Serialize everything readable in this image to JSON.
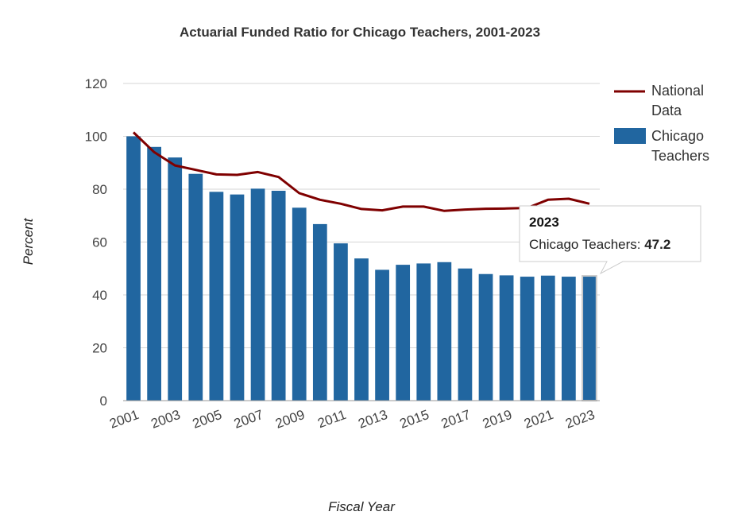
{
  "chart_data": {
    "type": "bar",
    "title": "Actuarial Funded Ratio for Chicago Teachers, 2001-2023",
    "xlabel": "Fiscal Year",
    "ylabel": "Percent",
    "ylim": [
      0,
      120
    ],
    "yticks": [
      "0",
      "20",
      "40",
      "60",
      "80",
      "100",
      "120"
    ],
    "categories": [
      "2001",
      "2002",
      "2003",
      "2004",
      "2005",
      "2006",
      "2007",
      "2008",
      "2009",
      "2010",
      "2011",
      "2012",
      "2013",
      "2014",
      "2015",
      "2016",
      "2017",
      "2018",
      "2019",
      "2020",
      "2021",
      "2022",
      "2023"
    ],
    "xtick_labels": [
      "2001",
      "2003",
      "2005",
      "2007",
      "2009",
      "2011",
      "2013",
      "2015",
      "2017",
      "2019",
      "2021",
      "2023"
    ],
    "series": [
      {
        "name": "Chicago Teachers",
        "type": "bar",
        "color": "#2166a0",
        "values": [
          100,
          96,
          92,
          85.8,
          79,
          78,
          80.2,
          79.4,
          73,
          66.8,
          59.5,
          53.8,
          49.5,
          51.4,
          51.9,
          52.4,
          50,
          47.9,
          47.4,
          46.9,
          47.3,
          46.9,
          47.2
        ]
      },
      {
        "name": "National Data",
        "type": "line",
        "color": "#7f0000",
        "values": [
          101.5,
          94,
          89,
          87.3,
          85.6,
          85.4,
          86.5,
          84.6,
          78.5,
          76,
          74.5,
          72.5,
          72,
          73.4,
          73.4,
          71.8,
          72.3,
          72.6,
          72.7,
          72.9,
          76,
          76.4,
          74.5
        ]
      }
    ],
    "legend": {
      "position": "right"
    },
    "grid": true,
    "tooltip": {
      "title": "2023",
      "series_label": "Chicago Teachers: ",
      "value": "47.2",
      "category": "2023"
    }
  }
}
